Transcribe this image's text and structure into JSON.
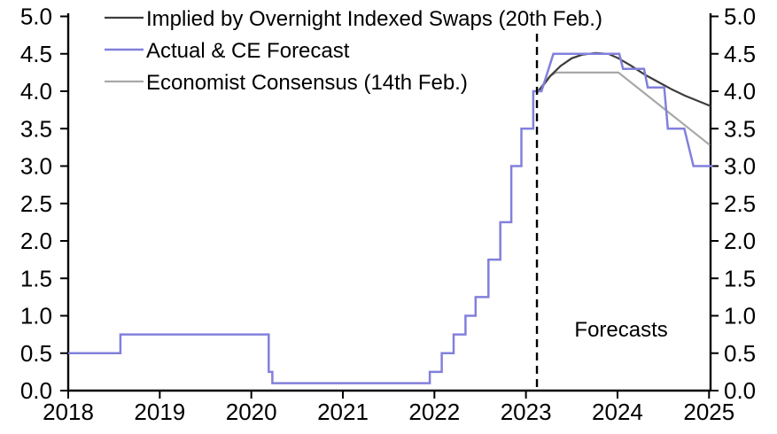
{
  "chart_data": {
    "type": "line",
    "title": "",
    "xlabel": "",
    "ylabel": "",
    "xlim": [
      2018,
      2025.05
    ],
    "ylim": [
      0.0,
      5.0
    ],
    "grid": false,
    "legend_position": "top-left",
    "y_axis_sides": "both",
    "x_ticks": [
      "2018",
      "2019",
      "2020",
      "2021",
      "2022",
      "2023",
      "2024",
      "2025"
    ],
    "y_ticks": [
      "0.0",
      "0.5",
      "1.0",
      "1.5",
      "2.0",
      "2.5",
      "3.0",
      "3.5",
      "4.0",
      "4.5",
      "5.0"
    ],
    "y_tick_values": [
      0.0,
      0.5,
      1.0,
      1.5,
      2.0,
      2.5,
      3.0,
      3.5,
      4.0,
      4.5,
      5.0
    ],
    "x_tick_values": [
      2018,
      2019,
      2020,
      2021,
      2022,
      2023,
      2024,
      2025
    ],
    "forecast_divider": {
      "x": 2023.12,
      "style": "dashed",
      "color": "#000000"
    },
    "annotations": [
      {
        "text": "Forecasts",
        "x": 2024.04,
        "y": 0.72
      }
    ],
    "draw_order": [
      2,
      0,
      1
    ],
    "series": [
      {
        "name": "Implied by Overnight Indexed Swaps (20th Feb.)",
        "color": "#3c3c3c",
        "width": 2.2,
        "points": [
          [
            2023.12,
            3.98
          ],
          [
            2023.19,
            4.08
          ],
          [
            2023.27,
            4.21
          ],
          [
            2023.38,
            4.34
          ],
          [
            2023.5,
            4.44
          ],
          [
            2023.62,
            4.49
          ],
          [
            2023.76,
            4.51
          ],
          [
            2023.9,
            4.5
          ],
          [
            2024.01,
            4.44
          ],
          [
            2024.15,
            4.34
          ],
          [
            2024.3,
            4.22
          ],
          [
            2024.45,
            4.12
          ],
          [
            2024.6,
            4.02
          ],
          [
            2024.74,
            3.94
          ],
          [
            2024.88,
            3.87
          ],
          [
            2025.02,
            3.8
          ]
        ]
      },
      {
        "name": "Actual & CE Forecast",
        "color": "#8280db",
        "width": 2.5,
        "points": [
          [
            2018.0,
            0.5
          ],
          [
            2018.57,
            0.5
          ],
          [
            2018.57,
            0.75
          ],
          [
            2020.19,
            0.75
          ],
          [
            2020.19,
            0.25
          ],
          [
            2020.23,
            0.25
          ],
          [
            2020.23,
            0.1
          ],
          [
            2021.95,
            0.1
          ],
          [
            2021.95,
            0.25
          ],
          [
            2022.08,
            0.25
          ],
          [
            2022.08,
            0.5
          ],
          [
            2022.21,
            0.5
          ],
          [
            2022.21,
            0.75
          ],
          [
            2022.34,
            0.75
          ],
          [
            2022.34,
            1.0
          ],
          [
            2022.45,
            1.0
          ],
          [
            2022.45,
            1.25
          ],
          [
            2022.59,
            1.25
          ],
          [
            2022.59,
            1.75
          ],
          [
            2022.72,
            1.75
          ],
          [
            2022.72,
            2.25
          ],
          [
            2022.84,
            2.25
          ],
          [
            2022.84,
            3.0
          ],
          [
            2022.95,
            3.0
          ],
          [
            2022.95,
            3.5
          ],
          [
            2023.08,
            3.5
          ],
          [
            2023.08,
            4.0
          ],
          [
            2023.17,
            4.0
          ],
          [
            2023.3,
            4.5
          ],
          [
            2024.02,
            4.5
          ],
          [
            2024.06,
            4.3
          ],
          [
            2024.29,
            4.3
          ],
          [
            2024.33,
            4.05
          ],
          [
            2024.51,
            4.05
          ],
          [
            2024.55,
            3.5
          ],
          [
            2024.73,
            3.5
          ],
          [
            2024.83,
            3.0
          ],
          [
            2025.04,
            3.0
          ]
        ]
      },
      {
        "name": "Economist Consensus (14th Feb.)",
        "color": "#a8a8a8",
        "width": 2.2,
        "points": [
          [
            2023.12,
            3.98
          ],
          [
            2023.18,
            4.08
          ],
          [
            2023.26,
            4.2
          ],
          [
            2023.33,
            4.25
          ],
          [
            2024.01,
            4.25
          ],
          [
            2025.01,
            3.28
          ]
        ]
      }
    ]
  }
}
